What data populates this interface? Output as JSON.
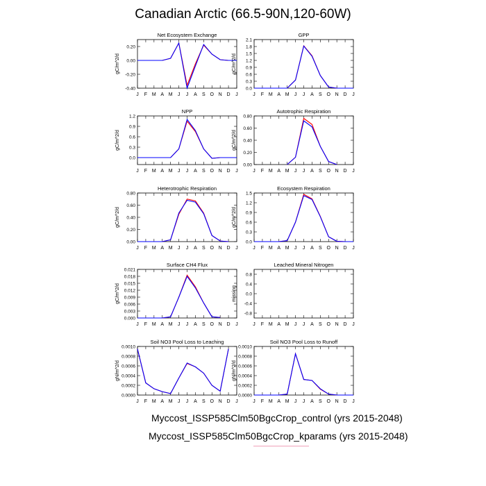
{
  "title": "Canadian Arctic (66.5-90N,120-60W)",
  "legend": [
    {
      "label": "Myccost_ISSP585Clm50BgcCrop_control (yrs 2015-2048)",
      "color": "#ff0000"
    },
    {
      "label": "Myccost_ISSP585Clm50BgcCrop_kparams (yrs 2015-2048)",
      "color": "#0000ff"
    }
  ],
  "chart_data": [
    {
      "type": "line",
      "title": "Net Ecosystem Exchange",
      "ylabel": "gC/m^2/d",
      "categories": [
        "J",
        "F",
        "M",
        "A",
        "M",
        "J",
        "J",
        "A",
        "S",
        "O",
        "N",
        "D",
        "J"
      ],
      "ylim": [
        -0.4,
        0.3
      ],
      "yticks": [
        -0.4,
        -0.2,
        0.0,
        0.2
      ],
      "ytick_labels": [
        "-0.40",
        "-0.20",
        "0.00",
        "0.20"
      ],
      "series": [
        {
          "values": [
            0.0,
            0.0,
            0.0,
            0.0,
            0.03,
            0.25,
            -0.36,
            -0.05,
            0.22,
            0.09,
            0.01,
            0.0,
            0.0
          ],
          "color": "#ff0000"
        },
        {
          "values": [
            0.0,
            0.0,
            0.0,
            0.0,
            0.03,
            0.25,
            -0.4,
            -0.08,
            0.23,
            0.09,
            0.01,
            0.0,
            0.0
          ],
          "color": "#0000ff"
        }
      ]
    },
    {
      "type": "line",
      "title": "GPP",
      "ylabel": "gC/m^2/d",
      "categories": [
        "J",
        "F",
        "M",
        "A",
        "M",
        "J",
        "J",
        "A",
        "S",
        "O",
        "N",
        "D",
        "J"
      ],
      "ylim": [
        0.0,
        2.1
      ],
      "yticks": [
        0.0,
        0.3,
        0.6,
        0.9,
        1.2,
        1.5,
        1.8,
        2.1
      ],
      "ytick_labels": [
        "0.0",
        "0.3",
        "0.6",
        "0.9",
        "1.2",
        "1.5",
        "1.8",
        "2.1"
      ],
      "series": [
        {
          "values": [
            0.0,
            0.0,
            0.0,
            0.0,
            0.0,
            0.35,
            1.83,
            1.4,
            0.55,
            0.05,
            0.0,
            0.0,
            0.0
          ],
          "color": "#ff0000"
        },
        {
          "values": [
            0.0,
            0.0,
            0.0,
            0.0,
            0.0,
            0.35,
            1.82,
            1.38,
            0.55,
            0.05,
            0.0,
            0.0,
            0.0
          ],
          "color": "#0000ff"
        }
      ]
    },
    {
      "type": "line",
      "title": "NPP",
      "ylabel": "gC/m^2/d",
      "categories": [
        "J",
        "F",
        "M",
        "A",
        "M",
        "J",
        "J",
        "A",
        "S",
        "O",
        "N",
        "D",
        "J"
      ],
      "ylim": [
        -0.2,
        1.2
      ],
      "yticks": [
        0.0,
        0.3,
        0.6,
        0.9,
        1.2
      ],
      "ytick_labels": [
        "0.0",
        "0.3",
        "0.6",
        "0.9",
        "1.2"
      ],
      "series": [
        {
          "values": [
            0.0,
            0.0,
            0.0,
            0.0,
            0.0,
            0.25,
            1.05,
            0.75,
            0.25,
            -0.02,
            0.0,
            0.0,
            0.0
          ],
          "color": "#ff0000"
        },
        {
          "values": [
            0.0,
            0.0,
            0.0,
            0.0,
            0.0,
            0.25,
            1.1,
            0.78,
            0.25,
            -0.02,
            0.0,
            0.0,
            0.0
          ],
          "color": "#0000ff"
        }
      ]
    },
    {
      "type": "line",
      "title": "Autotrophic Respiration",
      "ylabel": "gC/m^2/d",
      "categories": [
        "J",
        "F",
        "M",
        "A",
        "M",
        "J",
        "J",
        "A",
        "S",
        "O",
        "N",
        "D",
        "J"
      ],
      "ylim": [
        0.0,
        0.8
      ],
      "yticks": [
        0.0,
        0.2,
        0.4,
        0.6,
        0.8
      ],
      "ytick_labels": [
        "0.00",
        "0.20",
        "0.40",
        "0.60",
        "0.80"
      ],
      "series": [
        {
          "values": [
            null,
            null,
            null,
            null,
            0.0,
            0.12,
            0.76,
            0.66,
            0.3,
            0.05,
            0.0,
            null,
            null
          ],
          "color": "#ff0000"
        },
        {
          "values": [
            null,
            null,
            null,
            null,
            0.0,
            0.12,
            0.72,
            0.62,
            0.3,
            0.05,
            0.0,
            null,
            null
          ],
          "color": "#0000ff"
        }
      ]
    },
    {
      "type": "line",
      "title": "Heterotrophic Respiration",
      "ylabel": "gC/m^2/d",
      "categories": [
        "J",
        "F",
        "M",
        "A",
        "M",
        "J",
        "J",
        "A",
        "S",
        "O",
        "N",
        "D",
        "J"
      ],
      "ylim": [
        0.0,
        0.8
      ],
      "yticks": [
        0.0,
        0.2,
        0.4,
        0.6,
        0.8
      ],
      "ytick_labels": [
        "0.00",
        "0.20",
        "0.40",
        "0.60",
        "0.80"
      ],
      "series": [
        {
          "values": [
            0.0,
            0.0,
            0.0,
            0.0,
            0.03,
            0.45,
            0.7,
            0.67,
            0.47,
            0.1,
            0.01,
            0.0,
            null
          ],
          "color": "#ff0000"
        },
        {
          "values": [
            0.0,
            0.0,
            0.0,
            0.0,
            0.03,
            0.47,
            0.68,
            0.65,
            0.46,
            0.1,
            0.01,
            0.0,
            null
          ],
          "color": "#0000ff"
        }
      ]
    },
    {
      "type": "line",
      "title": "Ecosystem Respiration",
      "ylabel": "gC/m^2/d",
      "categories": [
        "J",
        "F",
        "M",
        "A",
        "M",
        "J",
        "J",
        "A",
        "S",
        "O",
        "N",
        "D",
        "J"
      ],
      "ylim": [
        0.0,
        1.5
      ],
      "yticks": [
        0.0,
        0.3,
        0.6,
        0.9,
        1.2,
        1.5
      ],
      "ytick_labels": [
        "0.0",
        "0.3",
        "0.6",
        "0.9",
        "1.2",
        "1.5"
      ],
      "series": [
        {
          "values": [
            0.0,
            0.0,
            0.0,
            0.0,
            0.03,
            0.6,
            1.46,
            1.32,
            0.78,
            0.15,
            0.01,
            0.0,
            0.0
          ],
          "color": "#ff0000"
        },
        {
          "values": [
            0.0,
            0.0,
            0.0,
            0.0,
            0.03,
            0.6,
            1.42,
            1.3,
            0.77,
            0.15,
            0.01,
            0.0,
            0.0
          ],
          "color": "#0000ff"
        }
      ]
    },
    {
      "type": "line",
      "title": "Surface CH4 Flux",
      "ylabel": "gC/m^2/d",
      "categories": [
        "J",
        "F",
        "M",
        "A",
        "M",
        "J",
        "J",
        "A",
        "S",
        "O",
        "N",
        "D",
        "J"
      ],
      "ylim": [
        0.0,
        0.021
      ],
      "yticks": [
        0.0,
        0.003,
        0.006,
        0.009,
        0.012,
        0.015,
        0.018,
        0.021
      ],
      "ytick_labels": [
        "0.000",
        "0.003",
        "0.006",
        "0.009",
        "0.012",
        "0.015",
        "0.018",
        "0.021"
      ],
      "series": [
        {
          "values": [
            0.0,
            0.0,
            0.0,
            0.0,
            0.0005,
            0.009,
            0.0185,
            0.0135,
            0.0065,
            0.0005,
            0.0002,
            null,
            null
          ],
          "color": "#ff0000"
        },
        {
          "values": [
            0.0,
            0.0,
            0.0,
            0.0,
            0.0005,
            0.009,
            0.018,
            0.013,
            0.0065,
            0.0005,
            0.0002,
            null,
            null
          ],
          "color": "#0000ff"
        }
      ]
    },
    {
      "type": "line",
      "title": "Leached Mineral Nitrogen",
      "ylabel": "missing",
      "categories": [
        "J",
        "F",
        "M",
        "A",
        "M",
        "J",
        "J",
        "A",
        "S",
        "O",
        "N",
        "D",
        "J"
      ],
      "ylim": [
        -1.0,
        1.0
      ],
      "yticks": [
        -0.8,
        -0.4,
        0.0,
        0.4,
        0.8
      ],
      "ytick_labels": [
        "-0.8",
        "-0.4",
        "0.0",
        "0.4",
        "0.8"
      ],
      "series": []
    },
    {
      "type": "line",
      "title": "Soil NO3 Pool Loss to Leaching",
      "ylabel": "gN/m^2/d",
      "categories": [
        "J",
        "F",
        "M",
        "A",
        "M",
        "J",
        "J",
        "A",
        "S",
        "O",
        "N",
        "D",
        "J"
      ],
      "ylim": [
        0.0,
        0.001
      ],
      "yticks": [
        0.0,
        0.0002,
        0.0004,
        0.0006,
        0.0008,
        0.001
      ],
      "ytick_labels": [
        "0.0000",
        "0.0002",
        "0.0004",
        "0.0006",
        "0.0008",
        "0.0010"
      ],
      "series": [
        {
          "values": [
            0.00095,
            0.00025,
            0.00013,
            7e-05,
            3e-05,
            0.00035,
            0.00065,
            0.00058,
            0.00045,
            0.0002,
            8e-05,
            0.00095,
            null
          ],
          "color": "#ff0000"
        },
        {
          "values": [
            0.00095,
            0.00025,
            0.00013,
            7e-05,
            3e-05,
            0.00035,
            0.00066,
            0.00058,
            0.00045,
            0.0002,
            8e-05,
            0.00095,
            null
          ],
          "color": "#0000ff"
        }
      ]
    },
    {
      "type": "line",
      "title": "Soil NO3 Pool Loss to Runoff",
      "ylabel": "gN/m^2/d",
      "categories": [
        "J",
        "F",
        "M",
        "A",
        "M",
        "J",
        "J",
        "A",
        "S",
        "O",
        "N",
        "D",
        "J"
      ],
      "ylim": [
        0.0,
        0.001
      ],
      "yticks": [
        0.0,
        0.0002,
        0.0004,
        0.0006,
        0.0008,
        0.001
      ],
      "ytick_labels": [
        "0.0000",
        "0.0002",
        "0.0004",
        "0.0006",
        "0.0008",
        "0.0010"
      ],
      "series": [
        {
          "values": [
            0.0,
            0.0,
            0.0,
            0.0,
            2e-05,
            0.00085,
            0.00032,
            0.0003,
            0.00012,
            2e-05,
            0.0,
            0.0,
            0.0
          ],
          "color": "#ff0000"
        },
        {
          "values": [
            0.0,
            0.0,
            0.0,
            0.0,
            2e-05,
            0.00085,
            0.00032,
            0.0003,
            0.00013,
            2e-05,
            0.0,
            0.0,
            0.0
          ],
          "color": "#0000ff"
        }
      ]
    }
  ]
}
